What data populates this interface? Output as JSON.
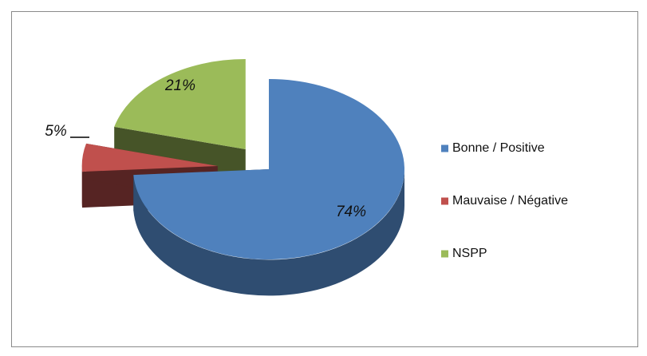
{
  "chart_data": {
    "type": "pie3d",
    "categories": [
      "Bonne / Positive",
      "Mauvaise / Négative",
      "NSPP"
    ],
    "values": [
      74,
      5,
      21
    ],
    "value_labels": [
      "74%",
      "5%",
      "21%"
    ],
    "colors": [
      "#4f81bd",
      "#c0504d",
      "#9bbb59"
    ],
    "legend": "right"
  }
}
